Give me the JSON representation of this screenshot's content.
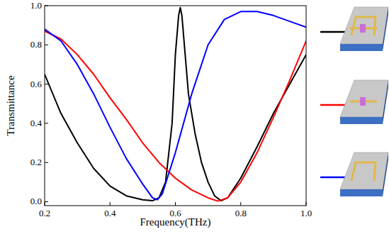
{
  "chart_data": {
    "type": "line",
    "x_label": "Frequency(THz)",
    "y_label": "Transmittance",
    "xlim": [
      0.2,
      1.0
    ],
    "ylim": [
      -0.02,
      1.0
    ],
    "xticks": [
      0.2,
      0.4,
      0.6,
      0.8,
      {
        "value": 1.0,
        "label": "1.0"
      }
    ],
    "yticks": [
      {
        "value": 0,
        "label": "0.0"
      },
      0.2,
      0.4,
      0.6,
      0.8,
      {
        "value": 1.0,
        "label": "1.0"
      }
    ],
    "grid": false,
    "series": [
      {
        "color": "#000000",
        "x": [
          0.2,
          0.25,
          0.3,
          0.35,
          0.4,
          0.45,
          0.5,
          0.53,
          0.55,
          0.57,
          0.59,
          0.6,
          0.61,
          0.615,
          0.62,
          0.63,
          0.64,
          0.66,
          0.68,
          0.7,
          0.72,
          0.74,
          0.76,
          0.8,
          0.85,
          0.9,
          0.95,
          1.0
        ],
        "values": [
          0.65,
          0.45,
          0.3,
          0.17,
          0.08,
          0.03,
          0.01,
          0.005,
          0.02,
          0.1,
          0.4,
          0.75,
          0.95,
          0.99,
          0.95,
          0.75,
          0.55,
          0.35,
          0.2,
          0.1,
          0.03,
          0.005,
          0.02,
          0.12,
          0.28,
          0.45,
          0.6,
          0.75
        ]
      },
      {
        "color": "#ff0000",
        "x": [
          0.2,
          0.25,
          0.3,
          0.35,
          0.4,
          0.45,
          0.5,
          0.55,
          0.6,
          0.65,
          0.7,
          0.73,
          0.76,
          0.8,
          0.85,
          0.9,
          0.95,
          1.0
        ],
        "values": [
          0.87,
          0.83,
          0.75,
          0.65,
          0.53,
          0.42,
          0.3,
          0.2,
          0.12,
          0.06,
          0.02,
          0.003,
          0.02,
          0.1,
          0.25,
          0.43,
          0.62,
          0.82
        ]
      },
      {
        "color": "#0000ff",
        "x": [
          0.2,
          0.25,
          0.3,
          0.35,
          0.4,
          0.45,
          0.5,
          0.53,
          0.545,
          0.56,
          0.6,
          0.65,
          0.7,
          0.75,
          0.8,
          0.85,
          0.9,
          0.95,
          1.0
        ],
        "values": [
          0.88,
          0.82,
          0.7,
          0.55,
          0.38,
          0.22,
          0.09,
          0.02,
          0.01,
          0.04,
          0.25,
          0.55,
          0.8,
          0.93,
          0.97,
          0.97,
          0.95,
          0.92,
          0.89
        ]
      }
    ]
  }
}
